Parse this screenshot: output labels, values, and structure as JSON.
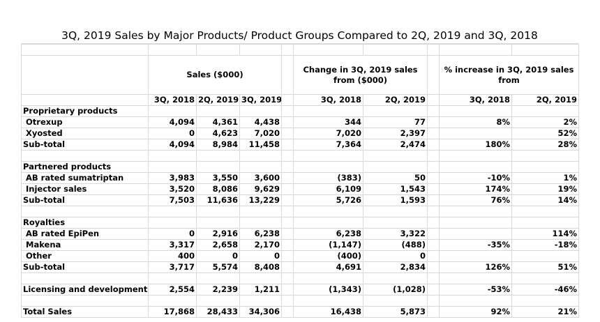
{
  "title": "3Q, 2019 Sales by Major Products/ Product Groups Compared to 2Q, 2019 and 3Q, 2018",
  "group_headers": {
    "sales": "Sales ($000)",
    "change": "Change in 3Q, 2019 sales from ($000)",
    "pct": "% increase in 3Q, 2019 sales from"
  },
  "col_headers": {
    "s_3q18": "3Q, 2018",
    "s_2q19": "2Q, 2019",
    "s_3q19": "3Q, 2019",
    "c_3q18": "3Q, 2018",
    "c_2q19": "2Q, 2019",
    "p_3q18": "3Q, 2018",
    "p_2q19": "2Q, 2019"
  },
  "sections": [
    {
      "heading": "Proprietary products",
      "rows": [
        {
          "label": "Otrexup",
          "s1": "4,094",
          "s2": "4,361",
          "s3": "4,438",
          "c1": "344",
          "c2": "77",
          "p1": "8%",
          "p2": "2%"
        },
        {
          "label": "Xyosted",
          "s1": "0",
          "s2": "4,623",
          "s3": "7,020",
          "c1": "7,020",
          "c2": "2,397",
          "p1": "",
          "p2": "52%"
        }
      ],
      "subtotal": {
        "label": "Sub-total",
        "s1": "4,094",
        "s2": "8,984",
        "s3": "11,458",
        "c1": "7,364",
        "c2": "2,474",
        "p1": "180%",
        "p2": "28%"
      }
    },
    {
      "heading": "Partnered products",
      "rows": [
        {
          "label": "AB rated sumatriptan",
          "s1": "3,983",
          "s2": "3,550",
          "s3": "3,600",
          "c1": "(383)",
          "c2": "50",
          "p1": "-10%",
          "p2": "1%"
        },
        {
          "label": "Injector sales",
          "s1": "3,520",
          "s2": "8,086",
          "s3": "9,629",
          "c1": "6,109",
          "c2": "1,543",
          "p1": "174%",
          "p2": "19%"
        }
      ],
      "subtotal": {
        "label": "Sub-total",
        "s1": "7,503",
        "s2": "11,636",
        "s3": "13,229",
        "c1": "5,726",
        "c2": "1,593",
        "p1": "76%",
        "p2": "14%"
      }
    },
    {
      "heading": "Royalties",
      "rows": [
        {
          "label": "AB rated EpiPen",
          "s1": "0",
          "s2": "2,916",
          "s3": "6,238",
          "c1": "6,238",
          "c2": "3,322",
          "p1": "",
          "p2": "114%"
        },
        {
          "label": "Makena",
          "s1": "3,317",
          "s2": "2,658",
          "s3": "2,170",
          "c1": "(1,147)",
          "c2": "(488)",
          "p1": "-35%",
          "p2": "-18%"
        },
        {
          "label": "Other",
          "s1": "400",
          "s2": "0",
          "s3": "0",
          "c1": "(400)",
          "c2": "0",
          "p1": "",
          "p2": ""
        }
      ],
      "subtotal": {
        "label": "Sub-total",
        "s1": "3,717",
        "s2": "5,574",
        "s3": "8,408",
        "c1": "4,691",
        "c2": "2,834",
        "p1": "126%",
        "p2": "51%"
      }
    }
  ],
  "licensing": {
    "label": "Licensing and development",
    "s1": "2,554",
    "s2": "2,239",
    "s3": "1,211",
    "c1": "(1,343)",
    "c2": "(1,028)",
    "p1": "-53%",
    "p2": "-46%"
  },
  "total": {
    "label": "Total Sales",
    "s1": "17,868",
    "s2": "28,433",
    "s3": "34,306",
    "c1": "16,438",
    "c2": "5,873",
    "p1": "92%",
    "p2": "21%"
  }
}
